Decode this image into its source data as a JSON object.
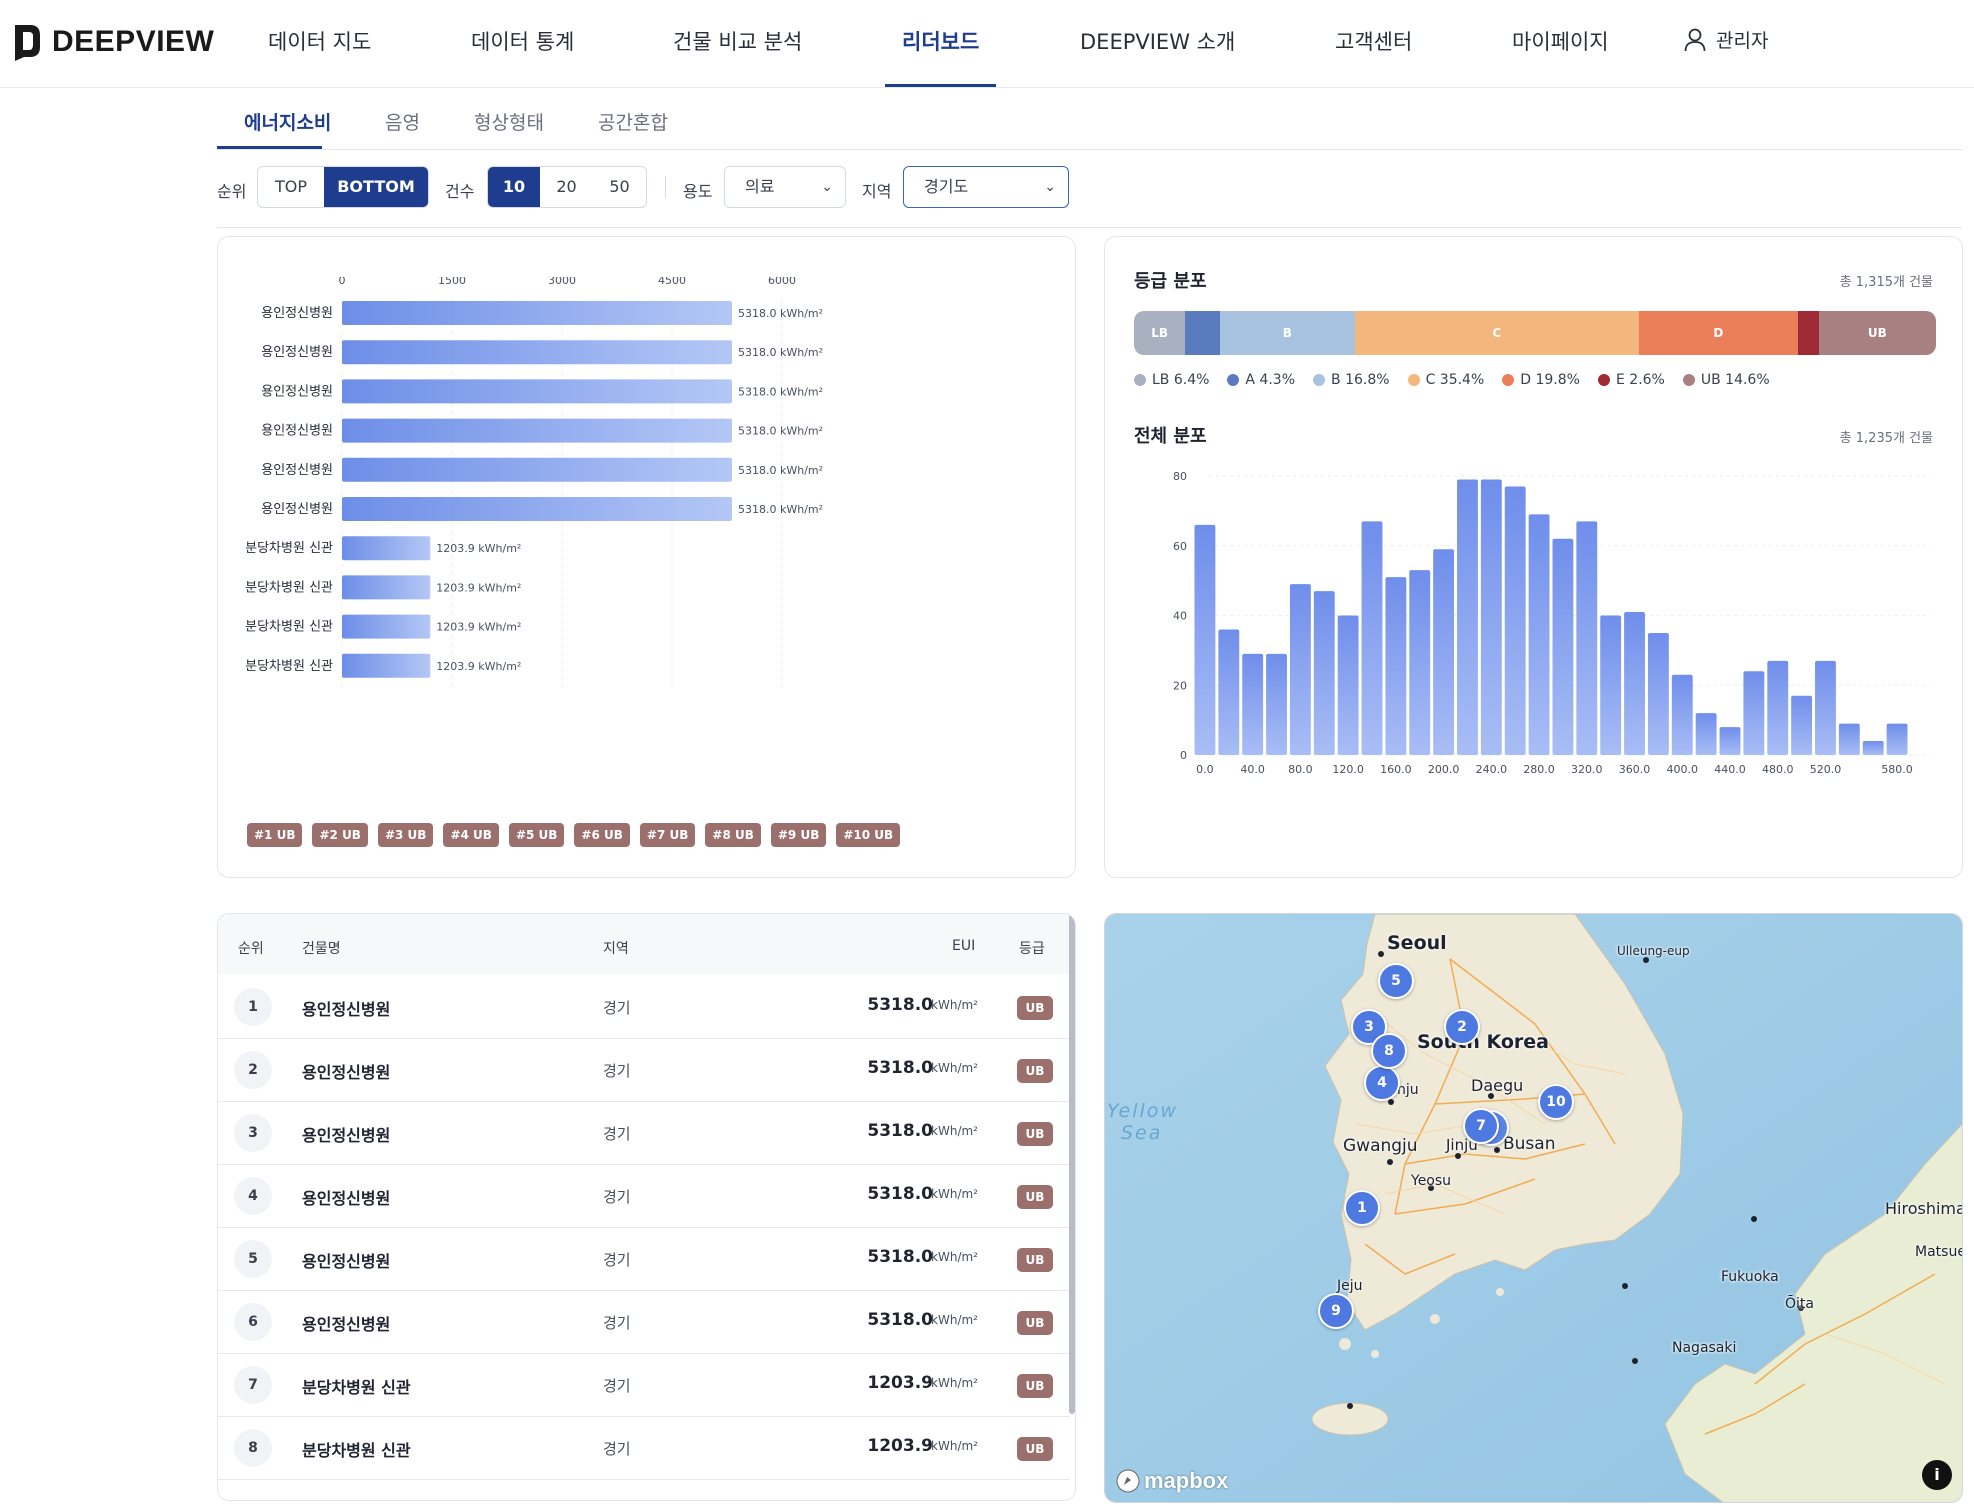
{
  "brand": {
    "name": "DEEPVIEW"
  },
  "nav": {
    "items": [
      "데이터 지도",
      "데이터 통계",
      "건물 비교 분석",
      "리더보드",
      "DEEPVIEW 소개",
      "고객센터",
      "마이페이지"
    ],
    "active": "리더보드",
    "user_label": "관리자"
  },
  "subtabs": {
    "items": [
      "에너지소비",
      "음영",
      "형상형태",
      "공간혼합"
    ],
    "active": "에너지소비"
  },
  "filters": {
    "rank_label": "순위",
    "rank_options": [
      "TOP",
      "BOTTOM"
    ],
    "rank_selected": "BOTTOM",
    "count_label": "건수",
    "count_options": [
      "10",
      "20",
      "50"
    ],
    "count_selected": "10",
    "use_label": "용도",
    "use_value": "의료",
    "region_label": "지역",
    "region_value": "경기도"
  },
  "bar_chart": {
    "axis_ticks": [
      "0",
      "1500",
      "3000",
      "4500",
      "6000"
    ],
    "badges": [
      "#1 UB",
      "#2 UB",
      "#3 UB",
      "#4 UB",
      "#5 UB",
      "#6 UB",
      "#7 UB",
      "#8 UB",
      "#9 UB",
      "#10 UB"
    ]
  },
  "grade_distribution": {
    "title": "등급 분포",
    "total": "총 1,315개 건물",
    "segments": [
      {
        "label": "LB",
        "pct": 6.4,
        "color": "#a9b1c1",
        "show_label": true
      },
      {
        "label": "A",
        "pct": 4.3,
        "color": "#5b7bbf",
        "show_label": false
      },
      {
        "label": "B",
        "pct": 16.8,
        "color": "#a7c3df",
        "show_label": true
      },
      {
        "label": "C",
        "pct": 35.4,
        "color": "#f3b67d",
        "show_label": true
      },
      {
        "label": "D",
        "pct": 19.8,
        "color": "#ea7f59",
        "show_label": true
      },
      {
        "label": "E",
        "pct": 2.6,
        "color": "#9e2a35",
        "show_label": false
      },
      {
        "label": "UB",
        "pct": 14.6,
        "color": "#a88080",
        "show_label": true
      }
    ],
    "legend": [
      "LB 6.4%",
      "A 4.3%",
      "B 16.8%",
      "C 35.4%",
      "D 19.8%",
      "E 2.6%",
      "UB 14.6%"
    ]
  },
  "overall_distribution": {
    "title": "전체 분포",
    "total": "총 1,235개 건물"
  },
  "table": {
    "headers": {
      "rank": "순위",
      "name": "건물명",
      "region": "지역",
      "eui": "EUI",
      "grade": "등급"
    },
    "rows": [
      {
        "rank": "1",
        "name": "용인정신병원",
        "region": "경기",
        "eui": "5318.0",
        "unit": "kWh/m²",
        "grade": "UB"
      },
      {
        "rank": "2",
        "name": "용인정신병원",
        "region": "경기",
        "eui": "5318.0",
        "unit": "kWh/m²",
        "grade": "UB"
      },
      {
        "rank": "3",
        "name": "용인정신병원",
        "region": "경기",
        "eui": "5318.0",
        "unit": "kWh/m²",
        "grade": "UB"
      },
      {
        "rank": "4",
        "name": "용인정신병원",
        "region": "경기",
        "eui": "5318.0",
        "unit": "kWh/m²",
        "grade": "UB"
      },
      {
        "rank": "5",
        "name": "용인정신병원",
        "region": "경기",
        "eui": "5318.0",
        "unit": "kWh/m²",
        "grade": "UB"
      },
      {
        "rank": "6",
        "name": "용인정신병원",
        "region": "경기",
        "eui": "5318.0",
        "unit": "kWh/m²",
        "grade": "UB"
      },
      {
        "rank": "7",
        "name": "분당차병원 신관",
        "region": "경기",
        "eui": "1203.9",
        "unit": "kWh/m²",
        "grade": "UB"
      },
      {
        "rank": "8",
        "name": "분당차병원 신관",
        "region": "경기",
        "eui": "1203.9",
        "unit": "kWh/m²",
        "grade": "UB"
      }
    ]
  },
  "map": {
    "labels": {
      "seoul": "Seoul",
      "south_korea": "South Korea",
      "daegu": "Daegu",
      "busan": "Busan",
      "gwangju": "Gwangju",
      "jinju": "Jinju",
      "yeosu": "Yeosu",
      "jeju": "Jeju",
      "ulleung": "Ulleung-eup",
      "yellow_sea_1": "Yellow",
      "yellow_sea_2": "Sea",
      "hiroshima": "Hiroshima",
      "matsue": "Matsue",
      "fukuoka": "Fukuoka",
      "oita": "Ōita",
      "nagasaki": "Nagasaki",
      "nju": "nju"
    },
    "pins": [
      "1",
      "2",
      "3",
      "4",
      "5",
      "7",
      "8",
      "9",
      "10"
    ],
    "attribution": "mapbox",
    "info_icon": "i"
  },
  "chart_data": [
    {
      "type": "bar",
      "orientation": "horizontal",
      "categories": [
        "용인정신병원",
        "용인정신병원",
        "용인정신병원",
        "용인정신병원",
        "용인정신병원",
        "용인정신병원",
        "분당차병원 신관",
        "분당차병원 신관",
        "분당차병원 신관",
        "분당차병원 신관"
      ],
      "values": [
        5318.0,
        5318.0,
        5318.0,
        5318.0,
        5318.0,
        5318.0,
        1203.9,
        1203.9,
        1203.9,
        1203.9
      ],
      "value_labels": [
        "5318.0 kWh/m²",
        "5318.0 kWh/m²",
        "5318.0 kWh/m²",
        "5318.0 kWh/m²",
        "5318.0 kWh/m²",
        "5318.0 kWh/m²",
        "1203.9 kWh/m²",
        "1203.9 kWh/m²",
        "1203.9 kWh/m²",
        "1203.9 kWh/m²"
      ],
      "xlim": [
        0,
        6000
      ],
      "xticks": [
        0,
        1500,
        3000,
        4500,
        6000
      ],
      "grid": true,
      "color": "#6d8ee8"
    },
    {
      "type": "bar",
      "title": "전체 분포",
      "bin_start": [
        0,
        20,
        40,
        60,
        80,
        100,
        120,
        140,
        160,
        180,
        200,
        220,
        240,
        260,
        280,
        300,
        320,
        340,
        360,
        380,
        400,
        420,
        440,
        460,
        480,
        500,
        520,
        540,
        560,
        580
      ],
      "values": [
        66,
        36,
        29,
        29,
        49,
        47,
        40,
        67,
        51,
        53,
        59,
        79,
        79,
        77,
        69,
        62,
        67,
        40,
        41,
        35,
        23,
        12,
        8,
        24,
        27,
        17,
        27,
        9,
        4,
        9
      ],
      "xticks": [
        "0.0",
        "40.0",
        "80.0",
        "120.0",
        "160.0",
        "200.0",
        "240.0",
        "280.0",
        "320.0",
        "360.0",
        "400.0",
        "440.0",
        "480.0",
        "520.0",
        "580.0"
      ],
      "yticks": [
        0,
        20,
        40,
        60,
        80
      ],
      "ylim": [
        0,
        80
      ],
      "grid": true,
      "color": "#7f9cf0"
    }
  ]
}
